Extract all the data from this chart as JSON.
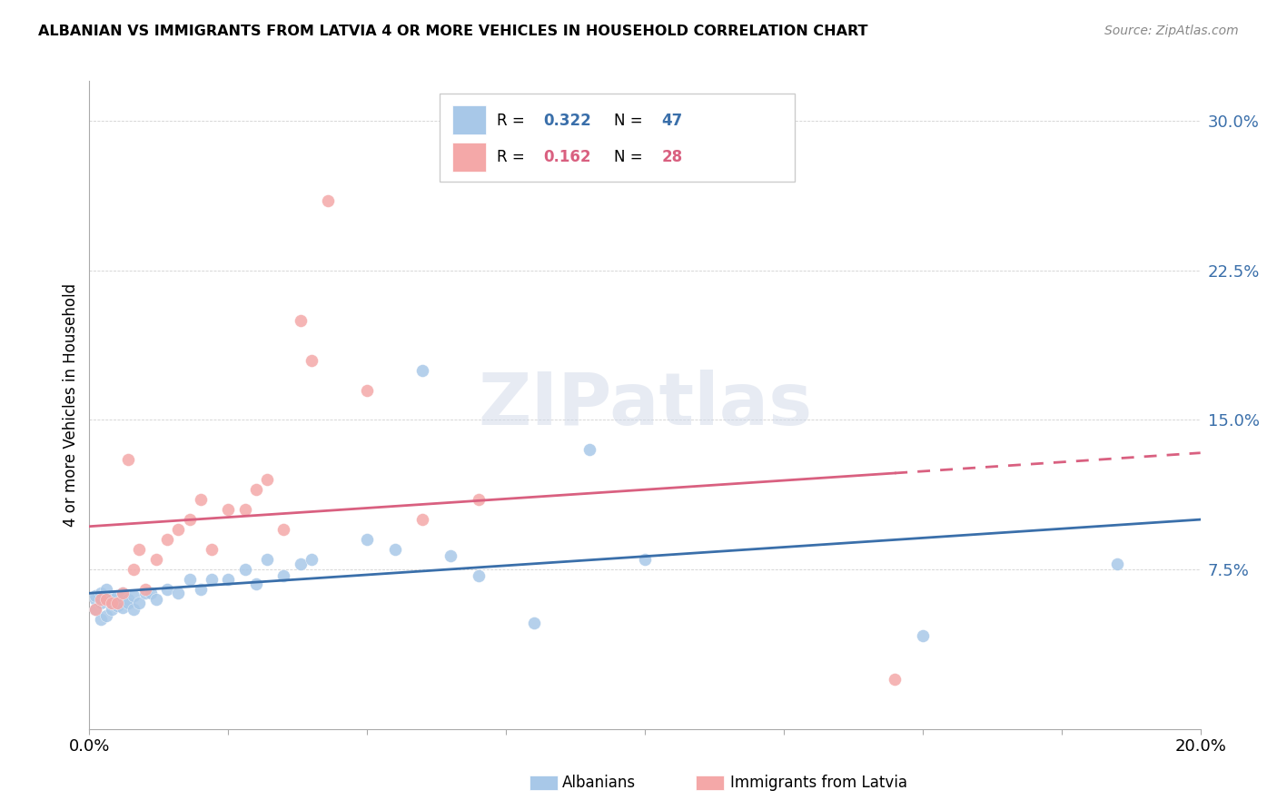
{
  "title": "ALBANIAN VS IMMIGRANTS FROM LATVIA 4 OR MORE VEHICLES IN HOUSEHOLD CORRELATION CHART",
  "source": "Source: ZipAtlas.com",
  "ylabel": "4 or more Vehicles in Household",
  "xlim": [
    0.0,
    0.2
  ],
  "ylim": [
    -0.005,
    0.32
  ],
  "yticks": [
    0.075,
    0.15,
    0.225,
    0.3
  ],
  "ytick_labels": [
    "7.5%",
    "15.0%",
    "22.5%",
    "30.0%"
  ],
  "xticks": [
    0.0,
    0.025,
    0.05,
    0.075,
    0.1,
    0.125,
    0.15,
    0.175,
    0.2
  ],
  "xtick_labels": [
    "0.0%",
    "",
    "",
    "",
    "",
    "",
    "",
    "",
    "20.0%"
  ],
  "blue_color": "#a8c8e8",
  "pink_color": "#f4a8a8",
  "blue_line_color": "#3a6faa",
  "pink_line_color": "#d96080",
  "blue_text_color": "#3a6faa",
  "pink_text_color": "#d96080",
  "watermark": "ZIPatlas",
  "albanian_x": [
    0.001,
    0.001,
    0.001,
    0.002,
    0.002,
    0.002,
    0.003,
    0.003,
    0.003,
    0.004,
    0.004,
    0.004,
    0.005,
    0.005,
    0.005,
    0.006,
    0.006,
    0.007,
    0.007,
    0.008,
    0.008,
    0.009,
    0.01,
    0.011,
    0.012,
    0.014,
    0.016,
    0.018,
    0.02,
    0.022,
    0.025,
    0.028,
    0.03,
    0.032,
    0.035,
    0.038,
    0.04,
    0.05,
    0.055,
    0.06,
    0.065,
    0.07,
    0.08,
    0.09,
    0.1,
    0.15,
    0.185
  ],
  "albanian_y": [
    0.055,
    0.06,
    0.062,
    0.05,
    0.058,
    0.063,
    0.052,
    0.06,
    0.065,
    0.055,
    0.06,
    0.058,
    0.057,
    0.062,
    0.058,
    0.056,
    0.063,
    0.06,
    0.058,
    0.055,
    0.062,
    0.058,
    0.063,
    0.063,
    0.06,
    0.065,
    0.063,
    0.07,
    0.065,
    0.07,
    0.07,
    0.075,
    0.068,
    0.08,
    0.072,
    0.078,
    0.08,
    0.09,
    0.085,
    0.175,
    0.082,
    0.072,
    0.048,
    0.135,
    0.08,
    0.042,
    0.078
  ],
  "latvia_x": [
    0.001,
    0.002,
    0.003,
    0.004,
    0.005,
    0.006,
    0.007,
    0.008,
    0.009,
    0.01,
    0.012,
    0.014,
    0.016,
    0.018,
    0.02,
    0.022,
    0.025,
    0.028,
    0.03,
    0.032,
    0.035,
    0.038,
    0.04,
    0.043,
    0.05,
    0.06,
    0.07,
    0.145
  ],
  "latvia_y": [
    0.055,
    0.06,
    0.06,
    0.058,
    0.058,
    0.063,
    0.13,
    0.075,
    0.085,
    0.065,
    0.08,
    0.09,
    0.095,
    0.1,
    0.11,
    0.085,
    0.105,
    0.105,
    0.115,
    0.12,
    0.095,
    0.2,
    0.18,
    0.26,
    0.165,
    0.1,
    0.11,
    0.02
  ]
}
